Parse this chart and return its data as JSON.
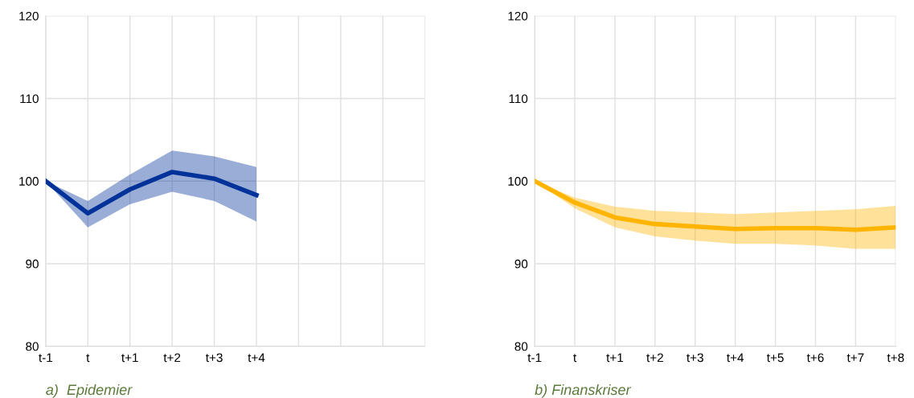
{
  "chart_data": [
    {
      "type": "line",
      "title": "a)  Epidemier",
      "categories": [
        "t-1",
        "t",
        "t+1",
        "t+2",
        "t+3",
        "t+4",
        null,
        null,
        null,
        null
      ],
      "ylim": [
        80,
        120
      ],
      "yticks": [
        80,
        90,
        100,
        110,
        120
      ],
      "grid": true,
      "series": [
        {
          "color": "#003299",
          "values": [
            100,
            96.1,
            99.0,
            101.1,
            100.3,
            98.3,
            null,
            null,
            null,
            null
          ],
          "lower": [
            100,
            94.4,
            97.2,
            98.7,
            97.6,
            95.1,
            null,
            null,
            null,
            null
          ],
          "upper": [
            100,
            97.6,
            100.8,
            103.7,
            103.0,
            101.7,
            null,
            null,
            null,
            null
          ]
        }
      ]
    },
    {
      "type": "line",
      "title": "b) Finanskriser",
      "categories": [
        "t-1",
        "t",
        "t+1",
        "t+2",
        "t+3",
        "t+4",
        "t+5",
        "t+6",
        "t+7",
        "t+8"
      ],
      "ylim": [
        80,
        120
      ],
      "yticks": [
        80,
        90,
        100,
        110,
        120
      ],
      "grid": true,
      "series": [
        {
          "color": "#ffb400",
          "values": [
            100,
            97.4,
            95.6,
            94.8,
            94.5,
            94.2,
            94.3,
            94.3,
            94.1,
            94.4
          ],
          "lower": [
            100,
            96.7,
            94.4,
            93.3,
            92.8,
            92.4,
            92.4,
            92.2,
            91.8,
            91.8
          ],
          "upper": [
            100,
            98.0,
            96.9,
            96.4,
            96.2,
            96.0,
            96.2,
            96.4,
            96.6,
            97.0
          ]
        }
      ]
    }
  ]
}
